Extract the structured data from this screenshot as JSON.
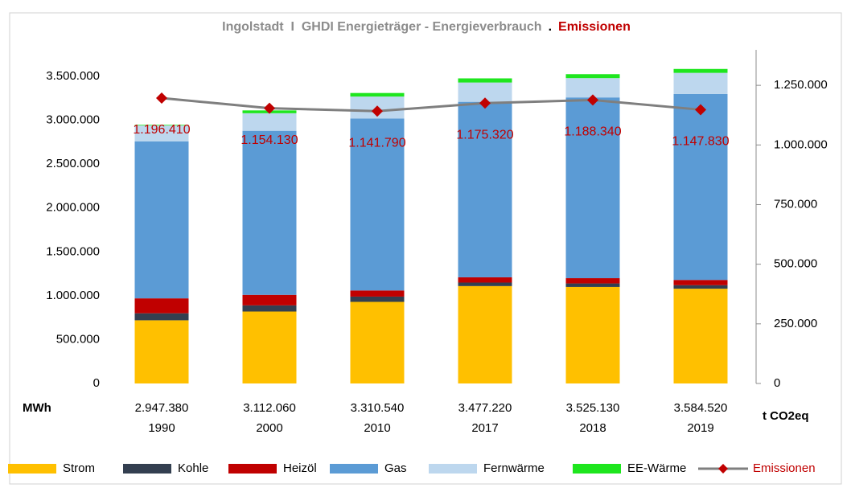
{
  "chart_data": {
    "type": "bar",
    "stacked": true,
    "title": "Ingolstadt  I  GHDI Energieträger - Energieverbrauch",
    "title_separator": ".",
    "title_highlight": "Emissionen",
    "y_label": "MWh",
    "y2_label": "t CO2eq",
    "categories": [
      "1990",
      "2000",
      "2010",
      "2017",
      "2018",
      "2019"
    ],
    "totals": [
      2947380,
      3112060,
      3310540,
      3477220,
      3525130,
      3584520
    ],
    "totals_labels": [
      "2.947.380",
      "3.112.060",
      "3.310.540",
      "3.477.220",
      "3.525.130",
      "3.584.520"
    ],
    "series": [
      {
        "name": "Strom",
        "color": "#ffc000",
        "values": [
          720000,
          820000,
          930000,
          1110000,
          1100000,
          1080000
        ]
      },
      {
        "name": "Kohle",
        "color": "#333f50",
        "values": [
          80000,
          70000,
          60000,
          40000,
          40000,
          40000
        ]
      },
      {
        "name": "Heizöl",
        "color": "#c00000",
        "values": [
          170000,
          120000,
          70000,
          60000,
          60000,
          60000
        ]
      },
      {
        "name": "Gas",
        "color": "#5b9bd5",
        "values": [
          1790000,
          1870000,
          1960000,
          2000000,
          2060000,
          2120000
        ]
      },
      {
        "name": "Fernwärme",
        "color": "#bdd7ee",
        "values": [
          180000,
          200000,
          250000,
          220000,
          220000,
          240000
        ]
      },
      {
        "name": "EE-Wärme",
        "color": "#1ee61e",
        "values": [
          7380,
          32060,
          40540,
          47220,
          45130,
          44520
        ]
      },
      {
        "name": "Emissionen",
        "type": "line",
        "axis": "y2",
        "color": "#7f7f7f",
        "marker_color": "#c00000",
        "values": [
          1196410,
          1154130,
          1141790,
          1175320,
          1188340,
          1147830
        ],
        "value_labels": [
          "1.196.410",
          "1.154.130",
          "1.141.790",
          "1.175.320",
          "1.188.340",
          "1.147.830"
        ]
      }
    ],
    "ylim": [
      0,
      3500000
    ],
    "yticks": [
      0,
      {
        "value": 500000,
        "label": "500.000"
      },
      {
        "value": 1000000,
        "label": "1.000.000"
      },
      {
        "value": 1500000,
        "label": "1.500.000"
      },
      {
        "value": 2000000,
        "label": "2.000.000"
      },
      {
        "value": 2500000,
        "label": "2.500.000"
      },
      {
        "value": 3000000,
        "label": "3.000.000"
      },
      {
        "value": 3500000,
        "label": "3.500.000"
      }
    ],
    "y2lim": [
      0,
      1287500
    ],
    "y2ticks": [
      0,
      {
        "value": 250000,
        "label": "250.000"
      },
      {
        "value": 500000,
        "label": "500.000"
      },
      {
        "value": 750000,
        "label": "750.000"
      },
      {
        "value": 1000000,
        "label": "1.000.000"
      },
      {
        "value": 1250000,
        "label": "1.250.000"
      }
    ],
    "grid": false,
    "legend": "bottom"
  }
}
